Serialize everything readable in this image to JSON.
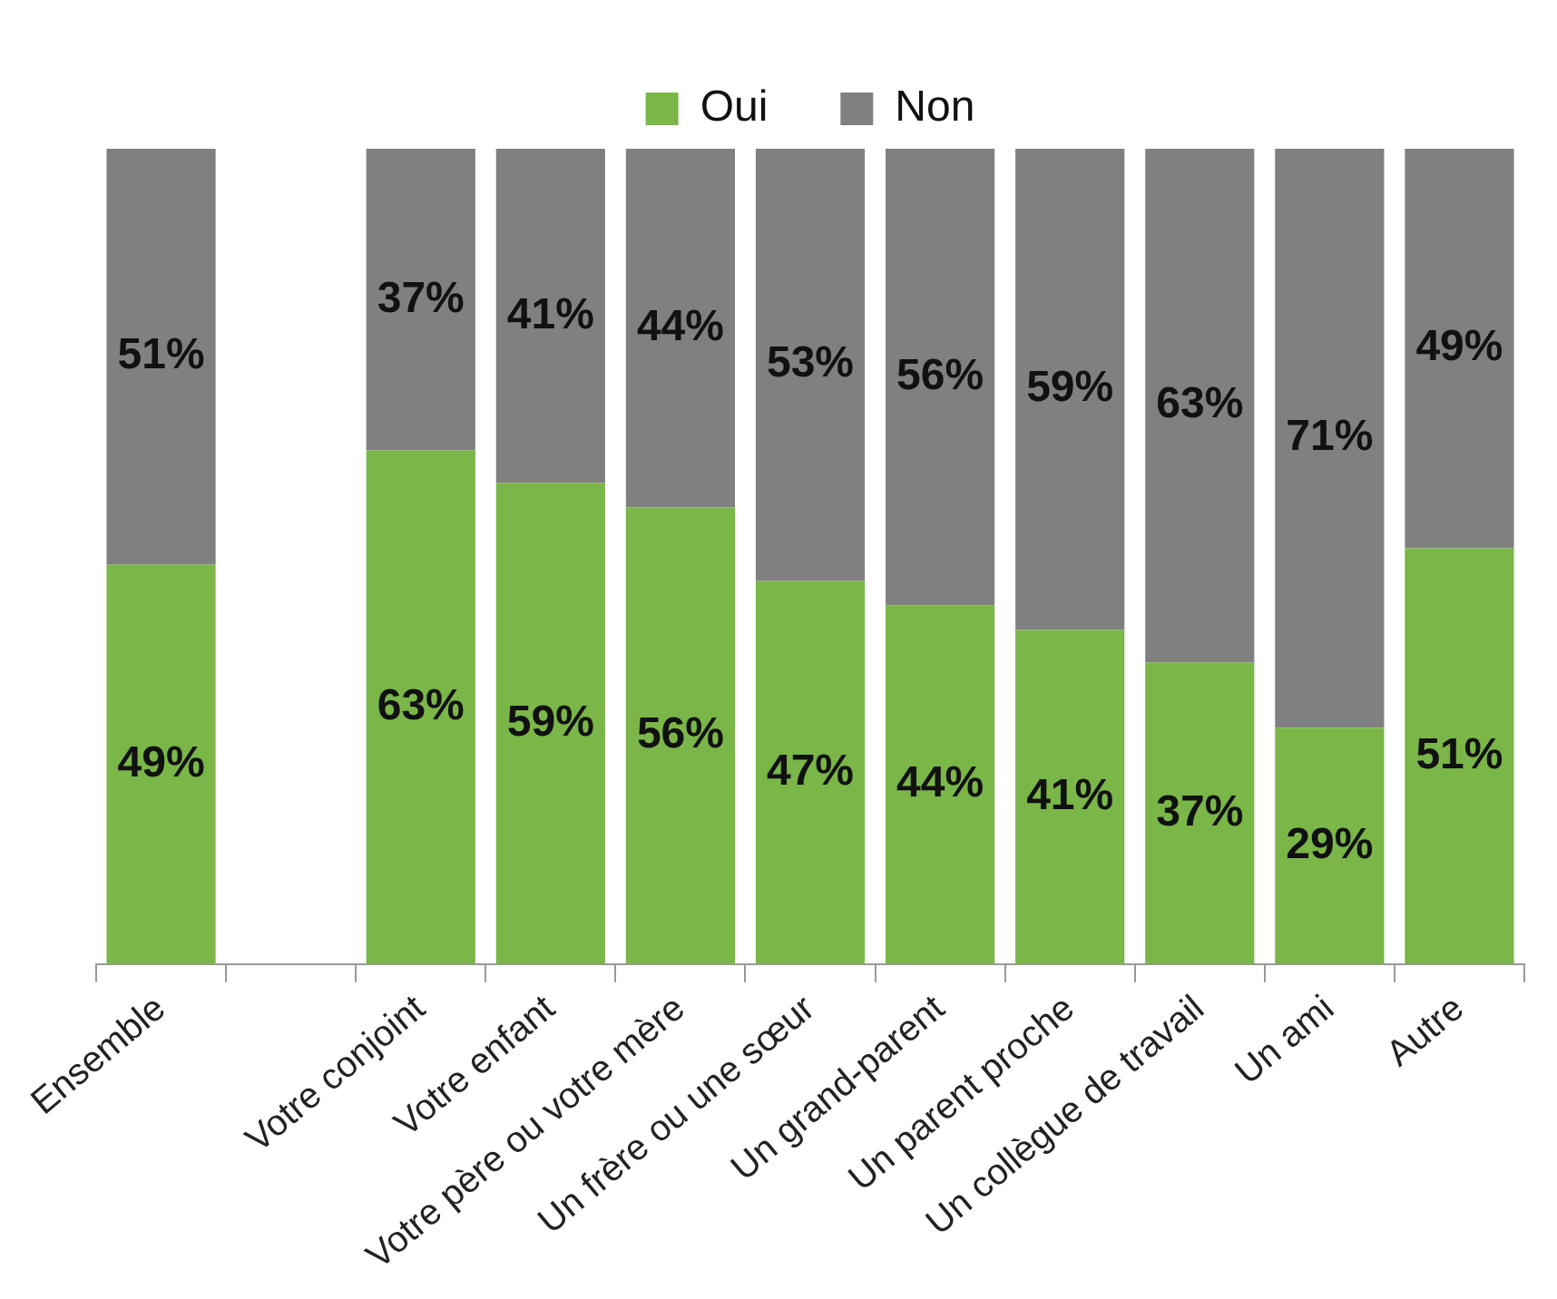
{
  "chart_data": {
    "type": "bar",
    "stacked": true,
    "legend": "top",
    "categories": [
      "Ensemble",
      null,
      "Votre conjoint",
      "Votre enfant",
      "Votre père ou votre mère",
      "Un frère ou une sœur",
      "Un grand-parent",
      "Un parent proche",
      "Un collègue de travail",
      "Un ami",
      "Autre"
    ],
    "series": [
      {
        "name": "Oui",
        "color": "#7ab648",
        "values": [
          49,
          null,
          63,
          59,
          56,
          47,
          44,
          41,
          37,
          29,
          51
        ],
        "value_labels": [
          "49%",
          null,
          "63%",
          "59%",
          "56%",
          "47%",
          "44%",
          "41%",
          "37%",
          "29%",
          "51%"
        ]
      },
      {
        "name": "Non",
        "color": "#808080",
        "values": [
          51,
          null,
          37,
          41,
          44,
          53,
          56,
          59,
          63,
          71,
          49
        ],
        "value_labels": [
          "51%",
          null,
          "37%",
          "41%",
          "44%",
          "53%",
          "56%",
          "59%",
          "63%",
          "71%",
          "49%"
        ]
      }
    ]
  }
}
